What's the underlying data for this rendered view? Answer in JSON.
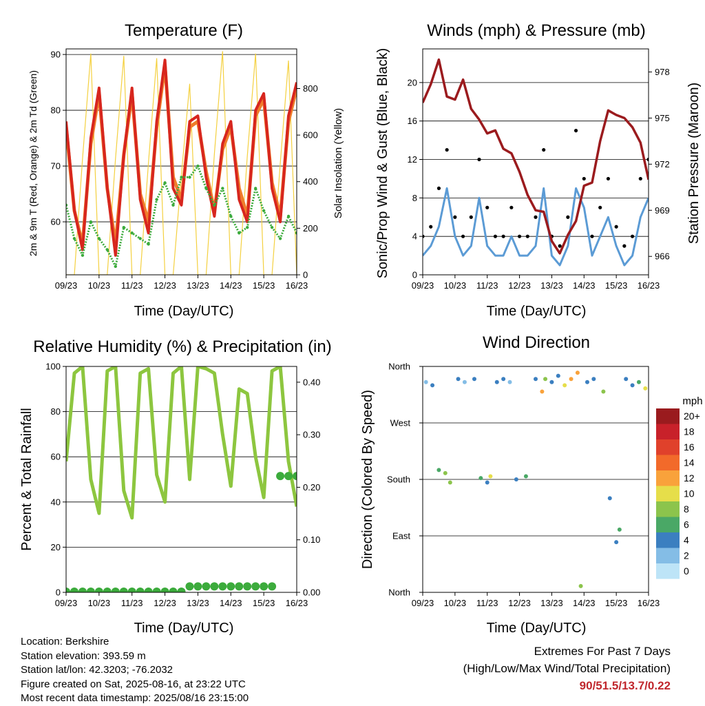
{
  "days": [
    "09/23",
    "10/23",
    "11/23",
    "12/23",
    "13/23",
    "14/23",
    "15/23",
    "16/23"
  ],
  "temperature_panel": {
    "title": "Temperature (F)",
    "xlabel": "Time (Day/UTC)",
    "ylabel_left": "2m & 9m T (Red, Orange) & 2m Td (Green)",
    "ylabel_right": "Solar Insolation (Yellow)",
    "yticks_left": [
      "60",
      "70",
      "80",
      "90"
    ],
    "yticks_right": [
      "0",
      "200",
      "400",
      "600",
      "800"
    ]
  },
  "winds_panel": {
    "title": "Winds (mph) & Pressure (mb)",
    "xlabel": "Time (Day/UTC)",
    "ylabel_left": "Sonic/Prop Wind & Gust (Blue, Black)",
    "ylabel_right": "Station Pressure (Maroon)",
    "yticks_left": [
      "0",
      "4",
      "8",
      "12",
      "16",
      "20"
    ],
    "yticks_right": [
      "966",
      "969",
      "972",
      "975",
      "978"
    ]
  },
  "rh_panel": {
    "title": "Relative Humidity (%) & Precipitation (in)",
    "xlabel": "Time (Day/UTC)",
    "ylabel_left": "Percent & Total Rainfall",
    "yticks_left": [
      "0",
      "20",
      "40",
      "60",
      "80",
      "100"
    ],
    "yticks_right": [
      "0.00",
      "0.10",
      "0.20",
      "0.30",
      "0.40"
    ]
  },
  "direction_panel": {
    "title": "Wind Direction",
    "xlabel": "Time (Day/UTC)",
    "ylabel_left": "Direction (Colored By Speed)",
    "yticks_left": [
      "North",
      "East",
      "South",
      "West",
      "North"
    ],
    "legend_title": "mph",
    "legend_labels": [
      "20+",
      "18",
      "16",
      "14",
      "12",
      "10",
      "8",
      "6",
      "4",
      "2",
      "0"
    ],
    "legend_colors": [
      "#9a1b1e",
      "#c8212a",
      "#e0412b",
      "#f26a2a",
      "#f9a23b",
      "#e6de4a",
      "#8cc44c",
      "#4aa866",
      "#3b7fc0",
      "#84bde6",
      "#bde4f7"
    ]
  },
  "info": {
    "location": "Location: Berkshire",
    "elevation": "Station elevation: 393.59 m",
    "latlon": "Station lat/lon: 42.3203; -76.2032",
    "created": "Figure created on Sat, 2025-08-16, at 23:22 UTC",
    "recent": "Most recent data timestamp: 2025/08/16 23:15:00"
  },
  "extremes": {
    "line1": "Extremes For Past 7 Days",
    "line2": "(High/Low/Max Wind/Total Precipitation)",
    "values": "90/51.5/13.7/0.22"
  },
  "chart_data": [
    {
      "type": "line",
      "title": "Temperature (F)",
      "xlabel": "Time (Day/UTC)",
      "ylabel": "2m & 9m T (Red, Orange) & 2m Td (Green)",
      "y2label": "Solar Insolation (Yellow)",
      "x": [
        9.0,
        9.25,
        9.5,
        9.75,
        10.0,
        10.25,
        10.5,
        10.75,
        11.0,
        11.25,
        11.5,
        11.75,
        12.0,
        12.25,
        12.5,
        12.75,
        13.0,
        13.25,
        13.5,
        13.75,
        14.0,
        14.25,
        14.5,
        14.75,
        15.0,
        15.25,
        15.5,
        15.75,
        16.0
      ],
      "ylim": [
        50.5,
        91
      ],
      "y2lim": [
        0,
        970
      ],
      "series": [
        {
          "name": "2m T",
          "color": "#d7261e",
          "values": [
            78,
            62,
            55,
            75,
            84,
            66,
            54,
            72,
            84,
            64,
            58,
            78,
            89,
            66,
            63,
            78,
            79,
            68,
            61,
            74,
            78,
            64,
            60,
            80,
            83,
            66,
            60,
            79,
            85
          ]
        },
        {
          "name": "9m T",
          "color": "#f07d2b",
          "values": [
            77,
            62,
            56,
            74,
            83,
            66,
            56,
            72,
            83,
            65,
            60,
            77,
            88,
            68,
            64,
            77,
            78,
            69,
            62,
            73,
            77,
            66,
            61,
            79,
            82,
            67,
            61,
            78,
            84
          ]
        },
        {
          "name": "2m Td",
          "color": "#3cab3c",
          "values": [
            63,
            57,
            54,
            60,
            57,
            55,
            52,
            59,
            58,
            57,
            56,
            64,
            67,
            63,
            68,
            68,
            70,
            66,
            63,
            66,
            61,
            58,
            59,
            66,
            62,
            59,
            57,
            61,
            58
          ]
        },
        {
          "name": "Solar Insolation",
          "color": "#f4d03f",
          "values": [
            0,
            0,
            500,
            950,
            0,
            0,
            500,
            940,
            0,
            0,
            480,
            930,
            0,
            0,
            430,
            820,
            0,
            0,
            520,
            960,
            0,
            0,
            510,
            950,
            0,
            0,
            480,
            920,
            0
          ]
        }
      ]
    },
    {
      "type": "line",
      "title": "Winds (mph) & Pressure (mb)",
      "xlabel": "Time (Day/UTC)",
      "ylabel": "Sonic/Prop Wind & Gust (Blue, Black)",
      "y2label": "Station Pressure (Maroon)",
      "x": [
        9.0,
        9.25,
        9.5,
        9.75,
        10.0,
        10.25,
        10.5,
        10.75,
        11.0,
        11.25,
        11.5,
        11.75,
        12.0,
        12.25,
        12.5,
        12.75,
        13.0,
        13.25,
        13.5,
        13.75,
        14.0,
        14.25,
        14.5,
        14.75,
        15.0,
        15.25,
        15.5,
        15.75,
        16.0
      ],
      "ylim": [
        0,
        23.5
      ],
      "y2lim": [
        964.8,
        979.5
      ],
      "series": [
        {
          "name": "Wind",
          "color": "#5b9bd5",
          "values": [
            2,
            3,
            5,
            9,
            4,
            2,
            3,
            8,
            3,
            2,
            2,
            4,
            2,
            2,
            3,
            9,
            2,
            1,
            3,
            9,
            7,
            2,
            4,
            6,
            3,
            1,
            2,
            6,
            8
          ]
        },
        {
          "name": "Gust",
          "color": "#000000",
          "values": [
            4,
            5,
            9,
            13,
            6,
            4,
            6,
            12,
            7,
            4,
            4,
            7,
            4,
            4,
            6,
            13,
            4,
            3,
            6,
            15,
            10,
            4,
            7,
            10,
            5,
            3,
            4,
            10,
            12
          ]
        },
        {
          "name": "Station Pressure",
          "color": "#9b1b1e",
          "values": [
            976.0,
            977.2,
            978.8,
            976.4,
            976.2,
            977.5,
            975.6,
            974.9,
            974.0,
            974.2,
            973.0,
            972.7,
            971.5,
            970.0,
            969.0,
            968.9,
            967.0,
            966.2,
            967.4,
            968.3,
            970.6,
            970.8,
            973.5,
            975.5,
            975.2,
            975.0,
            974.4,
            973.4,
            971.0
          ]
        }
      ]
    },
    {
      "type": "line",
      "title": "Relative Humidity (%) & Precipitation (in)",
      "xlabel": "Time (Day/UTC)",
      "ylabel": "Percent & Total Rainfall",
      "x": [
        9.0,
        9.25,
        9.5,
        9.75,
        10.0,
        10.25,
        10.5,
        10.75,
        11.0,
        11.25,
        11.5,
        11.75,
        12.0,
        12.25,
        12.5,
        12.75,
        13.0,
        13.25,
        13.5,
        13.75,
        14.0,
        14.25,
        14.5,
        14.75,
        15.0,
        15.25,
        15.5,
        15.75,
        16.0
      ],
      "ylim": [
        0,
        100
      ],
      "y2lim": [
        0,
        0.43
      ],
      "series": [
        {
          "name": "Relative Humidity",
          "color": "#8dc63f",
          "values": [
            58,
            97,
            100,
            50,
            35,
            98,
            100,
            45,
            33,
            97,
            99,
            52,
            40,
            97,
            100,
            50,
            100,
            99,
            97,
            70,
            47,
            90,
            88,
            60,
            42,
            98,
            100,
            58,
            38
          ]
        },
        {
          "name": "Total Rainfall",
          "color": "#3cab3c",
          "values": [
            0,
            0,
            0,
            0,
            0,
            0,
            0,
            0,
            0,
            0,
            0,
            0,
            0,
            0,
            0,
            0.01,
            0.01,
            0.01,
            0.01,
            0.01,
            0.01,
            0.01,
            0.01,
            0.01,
            0.01,
            0.01,
            0.22,
            0.22,
            0.22
          ]
        }
      ]
    },
    {
      "type": "scatter",
      "title": "Wind Direction",
      "xlabel": "Time (Day/UTC)",
      "ylabel": "Direction (Colored By Speed)",
      "ylim": [
        0,
        360
      ],
      "x": [
        9.1,
        9.3,
        9.5,
        9.7,
        9.85,
        10.1,
        10.3,
        10.6,
        10.8,
        11.0,
        11.1,
        11.3,
        11.5,
        11.7,
        11.9,
        12.2,
        12.5,
        12.7,
        12.8,
        13.0,
        13.2,
        13.4,
        13.6,
        13.8,
        13.9,
        14.1,
        14.3,
        14.6,
        14.8,
        15.0,
        15.1,
        15.3,
        15.5,
        15.7,
        15.9
      ],
      "values": [
        335,
        330,
        195,
        190,
        175,
        340,
        335,
        340,
        182,
        175,
        185,
        335,
        340,
        335,
        180,
        185,
        340,
        320,
        340,
        335,
        345,
        330,
        340,
        350,
        10,
        335,
        340,
        320,
        150,
        80,
        100,
        340,
        330,
        335,
        325
      ],
      "speeds": [
        2,
        3,
        5,
        7,
        8,
        3,
        2,
        3,
        6,
        4,
        9,
        3,
        3,
        2,
        4,
        5,
        3,
        12,
        8,
        4,
        3,
        9,
        11,
        12,
        8,
        3,
        4,
        7,
        3,
        4,
        5,
        3,
        4,
        6,
        10
      ]
    }
  ]
}
